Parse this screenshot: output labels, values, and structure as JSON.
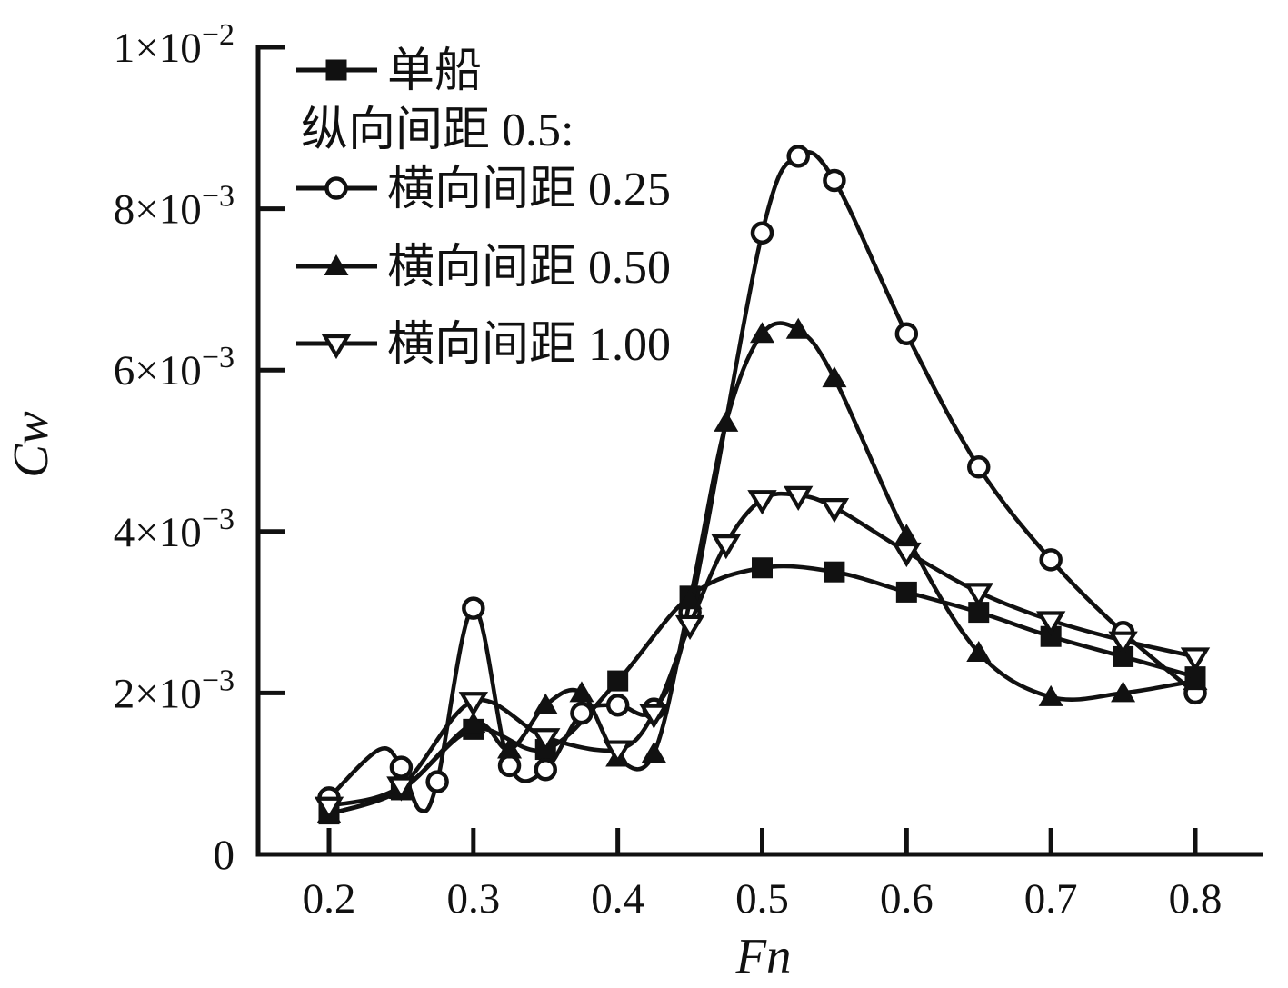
{
  "figure": {
    "background": "#ffffff",
    "ink_color": "#111111"
  },
  "axes": {
    "x_label": "Fn",
    "y_label": "Cw",
    "x_tick_labels": [
      {
        "value": 0.2,
        "label": "0.2"
      },
      {
        "value": 0.3,
        "label": "0.3"
      },
      {
        "value": 0.4,
        "label": "0.4"
      },
      {
        "value": 0.5,
        "label": "0.5"
      },
      {
        "value": 0.6,
        "label": "0.6"
      },
      {
        "value": 0.7,
        "label": "0.7"
      },
      {
        "value": 0.8,
        "label": "0.8"
      }
    ],
    "y_tick_labels": [
      {
        "value": 0,
        "base": "0",
        "sup": ""
      },
      {
        "value": 0.002,
        "base": "2×10",
        "sup": "−3"
      },
      {
        "value": 0.004,
        "base": "4×10",
        "sup": "−3"
      },
      {
        "value": 0.006,
        "base": "6×10",
        "sup": "−3"
      },
      {
        "value": 0.008,
        "base": "8×10",
        "sup": "−3"
      },
      {
        "value": 0.01,
        "base": "1×10",
        "sup": "−2"
      }
    ]
  },
  "legend": {
    "entries": [
      {
        "label": "单船",
        "marker": "square-filled"
      },
      {
        "label": "纵向间距 0.5:",
        "marker": "none"
      },
      {
        "label": "横向间距 0.25",
        "marker": "circle-open"
      },
      {
        "label": "横向间距 0.50",
        "marker": "triangle-filled"
      },
      {
        "label": "横向间距 1.00",
        "marker": "triangle-down-open"
      }
    ]
  },
  "chart_data": {
    "type": "line",
    "title": "",
    "xlabel": "Fn",
    "ylabel": "Cw",
    "xlim": [
      0.15,
      0.847
    ],
    "ylim": [
      0,
      0.01
    ],
    "grid": false,
    "legend_position": "upper-left-inside",
    "x_ticks": [
      0.2,
      0.3,
      0.4,
      0.5,
      0.6,
      0.7,
      0.8
    ],
    "y_ticks": [
      0,
      0.002,
      0.004,
      0.006,
      0.008,
      0.01
    ],
    "series": [
      {
        "name": "单船",
        "marker": "square-filled",
        "x": [
          0.2,
          0.25,
          0.3,
          0.35,
          0.4,
          0.45,
          0.5,
          0.55,
          0.6,
          0.65,
          0.7,
          0.75,
          0.8
        ],
        "y": [
          0.0005,
          0.0008,
          0.00155,
          0.0013,
          0.00215,
          0.0032,
          0.00355,
          0.0035,
          0.00325,
          0.003,
          0.0027,
          0.00245,
          0.0022
        ]
      },
      {
        "name": "横向间距 0.25",
        "marker": "circle-open",
        "x": [
          0.2,
          0.25,
          0.275,
          0.3,
          0.325,
          0.35,
          0.375,
          0.4,
          0.425,
          0.45,
          0.5,
          0.525,
          0.55,
          0.6,
          0.65,
          0.7,
          0.75,
          0.8
        ],
        "y": [
          0.0007,
          0.00108,
          0.0009,
          0.00305,
          0.0011,
          0.00105,
          0.00175,
          0.00185,
          0.0018,
          0.003,
          0.0077,
          0.00865,
          0.00835,
          0.00645,
          0.0048,
          0.00365,
          0.00275,
          0.002
        ],
        "curve_extra": [
          [
            0.235,
            0.0013
          ],
          [
            0.263,
            0.00055
          ]
        ]
      },
      {
        "name": "横向间距 0.50",
        "marker": "triangle-filled",
        "x": [
          0.2,
          0.25,
          0.3,
          0.325,
          0.35,
          0.375,
          0.4,
          0.425,
          0.45,
          0.475,
          0.5,
          0.525,
          0.55,
          0.6,
          0.65,
          0.7,
          0.75,
          0.8
        ],
        "y": [
          0.0005,
          0.0008,
          0.00162,
          0.0013,
          0.00185,
          0.002,
          0.0012,
          0.00125,
          0.00315,
          0.00535,
          0.00645,
          0.0065,
          0.0059,
          0.00395,
          0.0025,
          0.00195,
          0.002,
          0.00215
        ]
      },
      {
        "name": "横向间距 1.00",
        "marker": "triangle-down-open",
        "x": [
          0.2,
          0.25,
          0.3,
          0.35,
          0.4,
          0.425,
          0.45,
          0.475,
          0.5,
          0.525,
          0.55,
          0.6,
          0.65,
          0.7,
          0.75,
          0.8
        ],
        "y": [
          0.0006,
          0.00085,
          0.0019,
          0.00145,
          0.0013,
          0.00175,
          0.00285,
          0.00385,
          0.0044,
          0.00445,
          0.0043,
          0.00375,
          0.00325,
          0.0029,
          0.00265,
          0.00245
        ]
      }
    ]
  }
}
